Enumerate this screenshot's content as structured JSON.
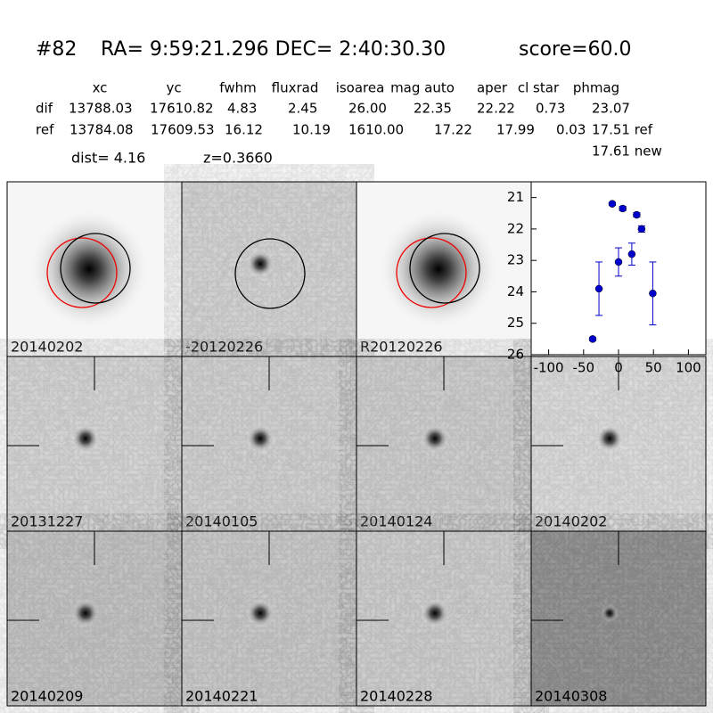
{
  "header": {
    "id": "#82",
    "coords": "RA= 9:59:21.296 DEC= 2:40:30.30",
    "score": "score=60.0"
  },
  "table": {
    "columns": [
      "xc",
      "yc",
      "fwhm",
      "fluxrad",
      "isoarea",
      "mag auto",
      "aper",
      "cl star",
      "phmag"
    ],
    "rows": [
      [
        "dif",
        "13788.03",
        "17610.82",
        "4.83",
        "2.45",
        "26.00",
        "22.35",
        "22.22",
        "0.73",
        "23.07"
      ],
      [
        "ref",
        "13784.08",
        "17609.53",
        "16.12",
        "10.19",
        "1610.00",
        "17.22",
        "17.99",
        "0.03",
        "17.51 ref"
      ]
    ],
    "extra": "17.61 new"
  },
  "dist": "dist=  4.16",
  "z": "z=0.3660",
  "panels": [
    "20140202",
    "-20120226",
    "R20120226",
    "20131227",
    "20140105",
    "20140124",
    "20140202",
    "20140209",
    "20140221",
    "20140228",
    "20140308"
  ],
  "chart_data": {
    "type": "scatter",
    "x": [
      -37,
      -28,
      -9,
      0,
      6,
      19,
      26,
      33,
      49
    ],
    "values": [
      25.5,
      23.9,
      21.2,
      23.05,
      21.35,
      22.8,
      21.55,
      22.0,
      24.05
    ],
    "errors": [
      0.05,
      0.85,
      0.05,
      0.45,
      0.07,
      0.35,
      0.07,
      0.1,
      1.0
    ],
    "color": "#0000cc",
    "xlim": [
      -125,
      125
    ],
    "ylim": [
      26,
      20.5
    ],
    "xticks": [
      -100,
      -50,
      0,
      50,
      100
    ],
    "yticks": [
      21,
      22,
      23,
      24,
      25,
      26
    ]
  }
}
